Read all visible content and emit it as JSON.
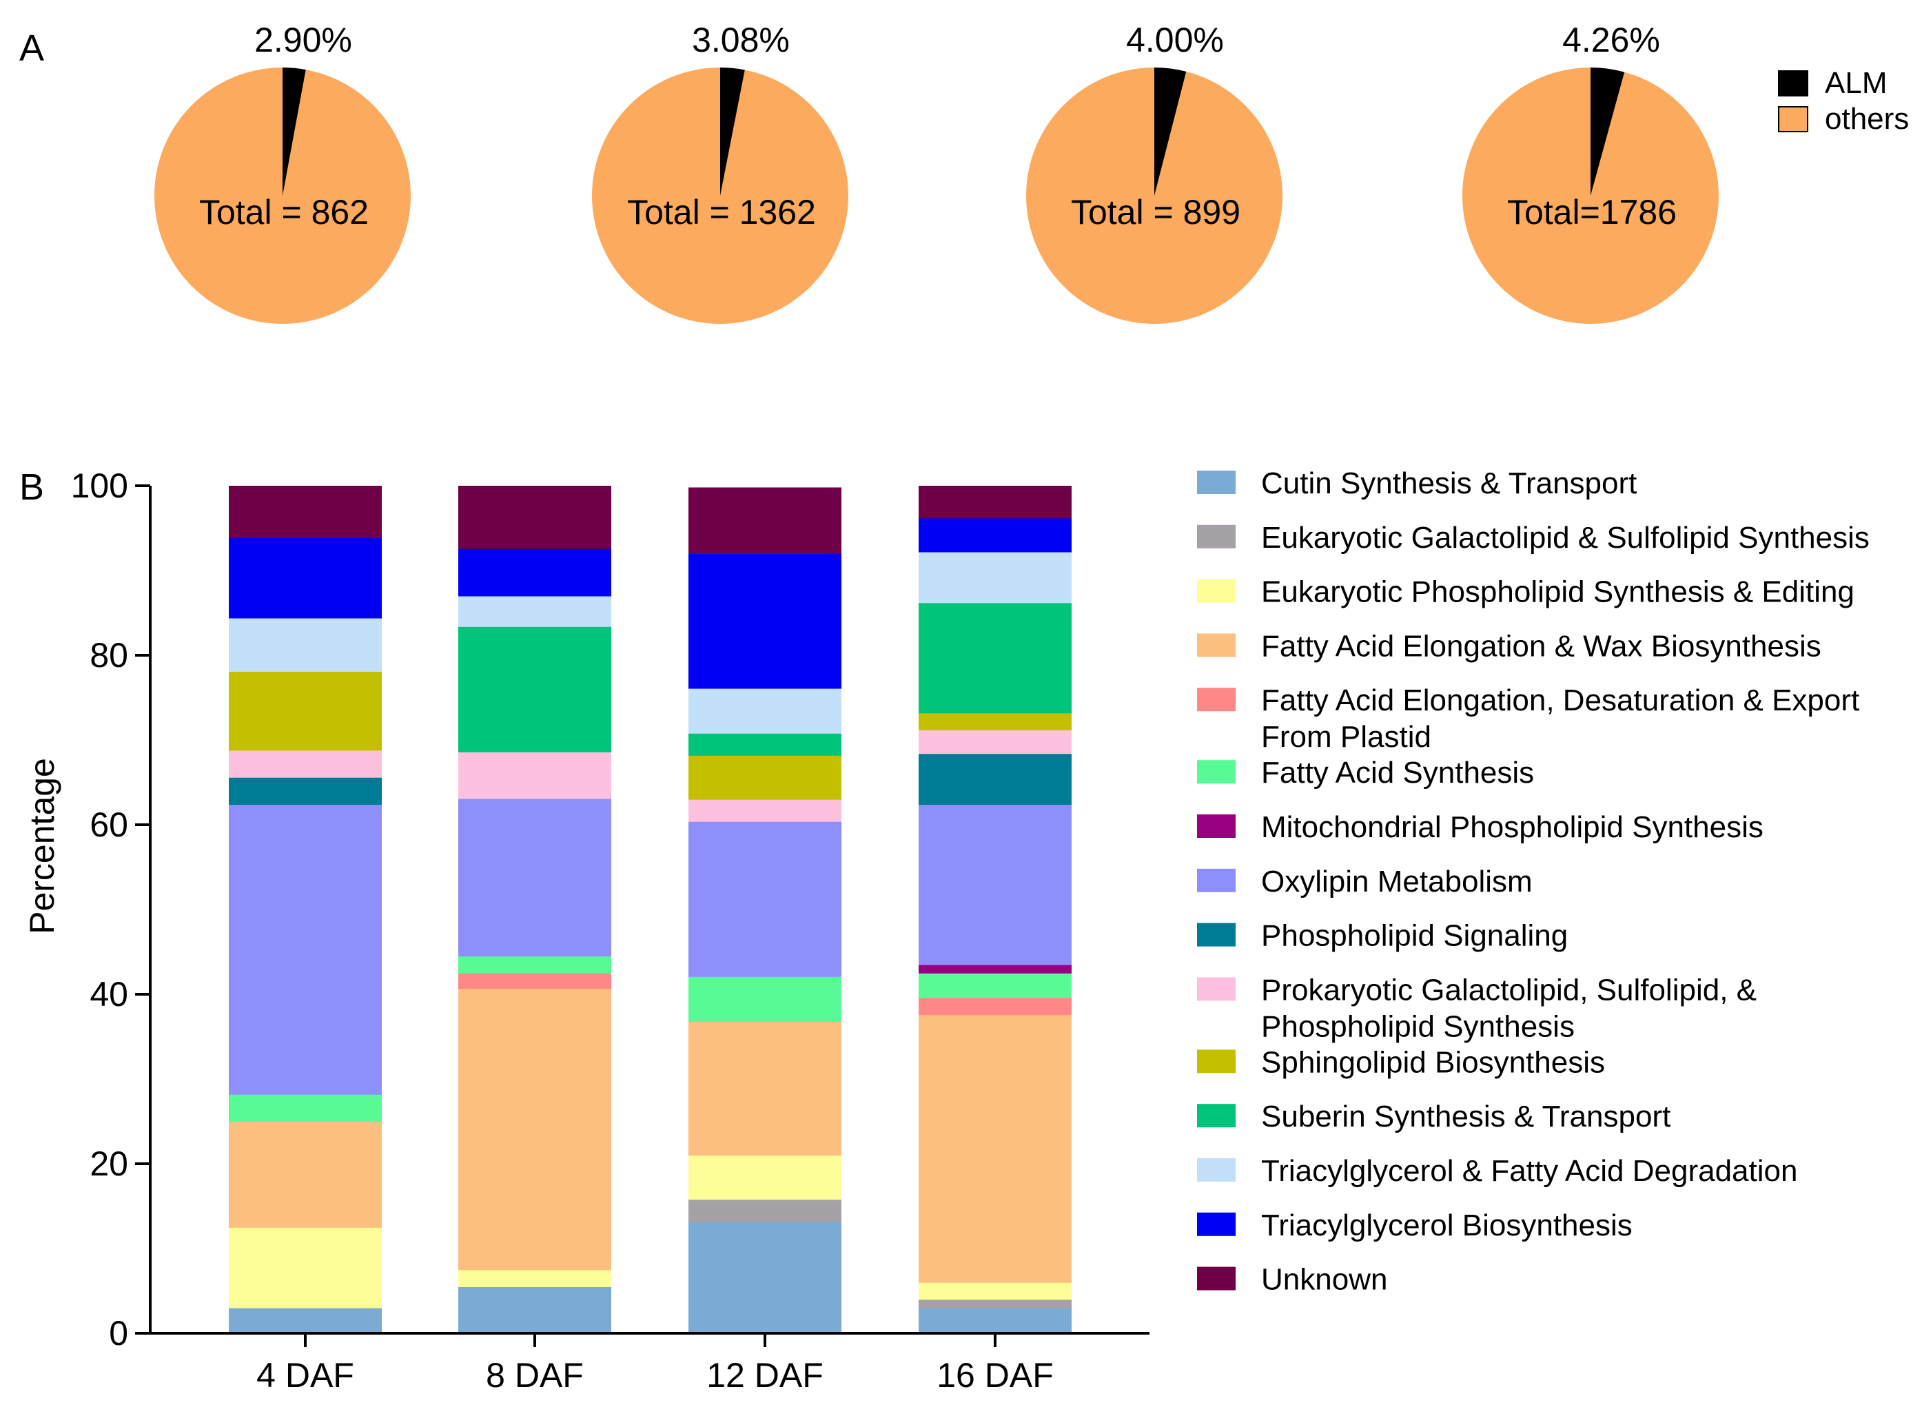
{
  "panel_a_label": "A",
  "panel_b_label": "B",
  "chart_data": [
    {
      "type": "pie",
      "panel": "A",
      "legend": [
        {
          "label": "ALM",
          "color": "#000000"
        },
        {
          "label": "others",
          "color": "#FBAA5E"
        }
      ],
      "pies": [
        {
          "alm_percent_label": "2.90%",
          "alm_percent": 2.9,
          "total_label": "Total = 862"
        },
        {
          "alm_percent_label": "3.08%",
          "alm_percent": 3.08,
          "total_label": "Total = 1362"
        },
        {
          "alm_percent_label": "4.00%",
          "alm_percent": 4.0,
          "total_label": "Total = 899"
        },
        {
          "alm_percent_label": "4.26%",
          "alm_percent": 4.26,
          "total_label": "Total=1786"
        }
      ]
    },
    {
      "type": "bar",
      "stacked": true,
      "panel": "B",
      "title": "",
      "xlabel": "",
      "ylabel": "Percentage",
      "ylim": [
        0,
        100
      ],
      "yticks": [
        "0",
        "20",
        "40",
        "60",
        "80",
        "100"
      ],
      "categories": [
        "4 DAF",
        "8 DAF",
        "12 DAF",
        "16 DAF"
      ],
      "series": [
        {
          "name": "Cutin Synthesis & Transport",
          "color": "#7BAAD4",
          "values": [
            3.0,
            5.5,
            13.2,
            3.0
          ]
        },
        {
          "name": "Eukaryotic Galactolipid & Sulfolipid Synthesis",
          "color": "#A6A1A6",
          "values": [
            0,
            0,
            2.6,
            1.0
          ]
        },
        {
          "name": "Eukaryotic Phospholipid Synthesis & Editing",
          "color": "#FEFE99",
          "values": [
            9.5,
            2.0,
            5.2,
            2.0
          ]
        },
        {
          "name": "Fatty Acid Elongation & Wax Biosynthesis",
          "color": "#FDBF80",
          "values": [
            12.5,
            33.2,
            15.8,
            31.6
          ]
        },
        {
          "name": "Fatty Acid Elongation, Desaturation & Export From Plastid",
          "color": "#FF8787",
          "values": [
            0,
            1.8,
            0,
            2.0
          ]
        },
        {
          "name": "Fatty Acid Synthesis",
          "color": "#58FA96",
          "values": [
            3.2,
            2.0,
            5.3,
            2.9
          ]
        },
        {
          "name": "Mitochondrial Phospholipid Synthesis",
          "color": "#990080",
          "values": [
            0,
            0,
            0,
            1.0
          ]
        },
        {
          "name": "Oxylipin Metabolism",
          "color": "#8F8FFB",
          "values": [
            34.2,
            18.6,
            18.3,
            18.9
          ]
        },
        {
          "name": "Phospholipid Signaling",
          "color": "#007B96",
          "values": [
            3.2,
            0,
            0,
            6.0
          ]
        },
        {
          "name": "Prokaryotic Galactolipid, Sulfolipid, & Phospholipid Synthesis",
          "color": "#FDC0DF",
          "values": [
            3.2,
            5.5,
            2.6,
            2.8
          ]
        },
        {
          "name": "Sphingolipid Biosynthesis",
          "color": "#C4C000",
          "values": [
            9.3,
            0,
            5.2,
            2.0
          ]
        },
        {
          "name": "Suberin Synthesis & Transport",
          "color": "#00C479",
          "values": [
            0,
            14.8,
            2.6,
            13.0
          ]
        },
        {
          "name": "Triacylglycerol & Fatty Acid Degradation",
          "color": "#C3E0FA",
          "values": [
            6.3,
            3.6,
            5.3,
            6.0
          ]
        },
        {
          "name": "Triacylglycerol Biosynthesis",
          "color": "#0000F5",
          "values": [
            9.5,
            5.6,
            15.9,
            4.0
          ]
        },
        {
          "name": "Unknown",
          "color": "#6F0048",
          "values": [
            6.1,
            7.4,
            7.8,
            3.8
          ]
        }
      ],
      "legend_lines": [
        [
          "Cutin Synthesis & Transport"
        ],
        [
          "Eukaryotic Galactolipid & Sulfolipid Synthesis"
        ],
        [
          "Eukaryotic Phospholipid Synthesis & Editing"
        ],
        [
          "Fatty Acid Elongation & Wax Biosynthesis"
        ],
        [
          "Fatty Acid Elongation, Desaturation & Export",
          "From Plastid"
        ],
        [
          "Fatty Acid Synthesis"
        ],
        [
          "Mitochondrial Phospholipid Synthesis"
        ],
        [
          "Oxylipin Metabolism"
        ],
        [
          "Phospholipid Signaling"
        ],
        [
          "Prokaryotic Galactolipid, Sulfolipid, &",
          "Phospholipid Synthesis"
        ],
        [
          "Sphingolipid Biosynthesis"
        ],
        [
          "Suberin Synthesis & Transport"
        ],
        [
          "Triacylglycerol & Fatty Acid Degradation"
        ],
        [
          "Triacylglycerol Biosynthesis"
        ],
        [
          "Unknown"
        ]
      ]
    }
  ]
}
